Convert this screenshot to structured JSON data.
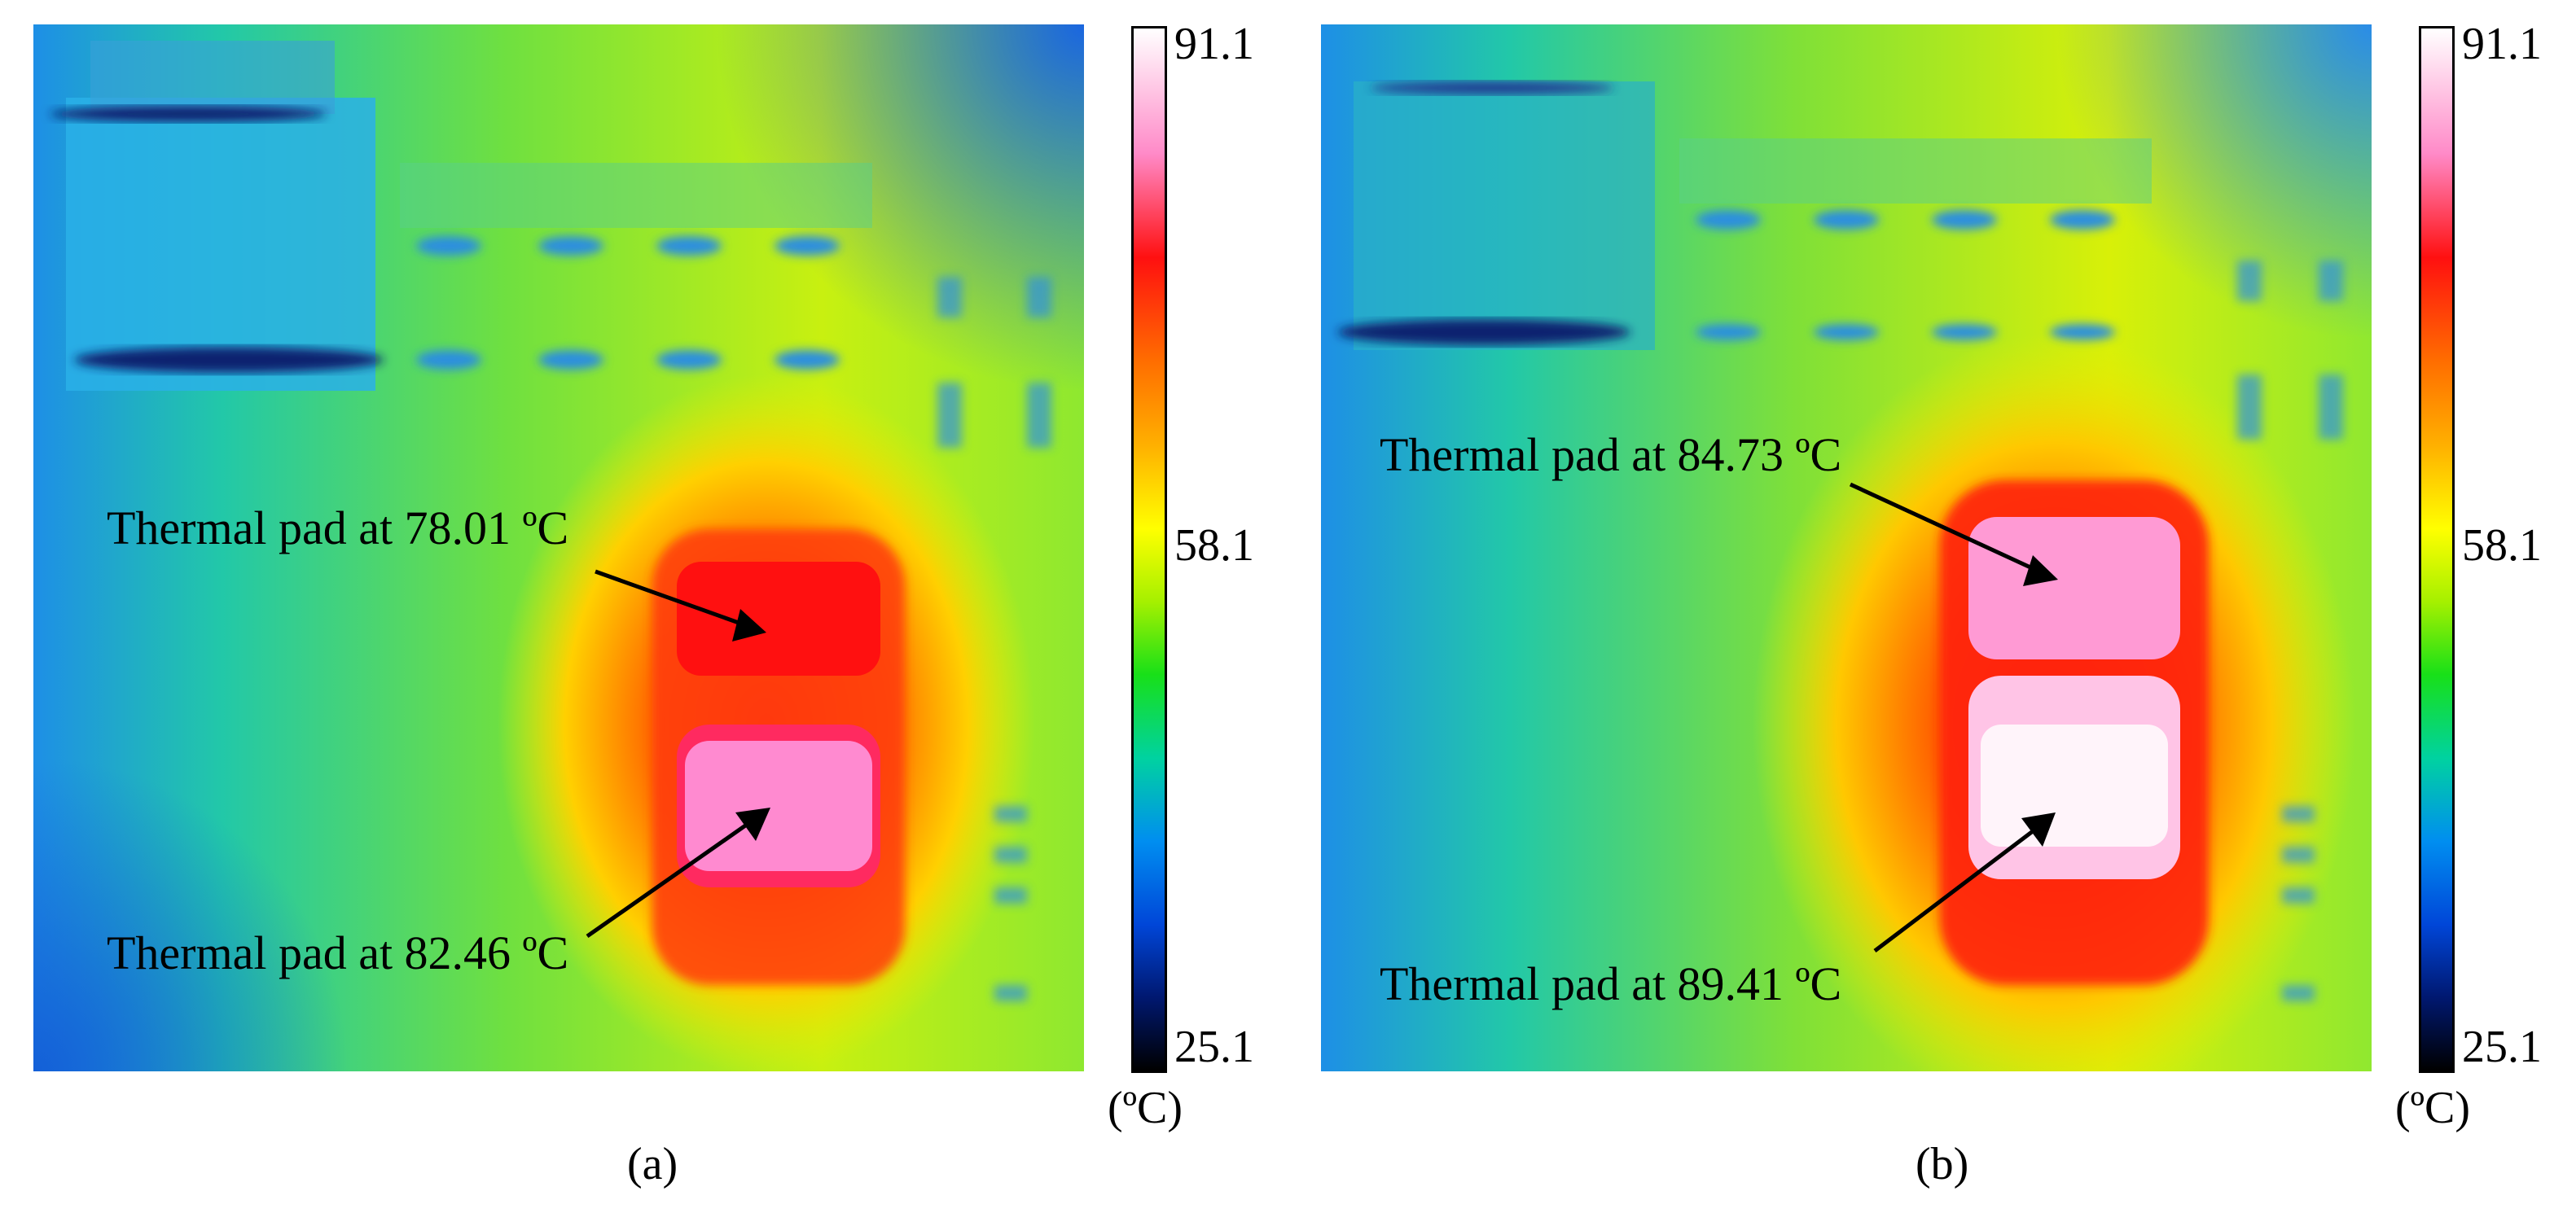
{
  "panels": [
    {
      "id": "a",
      "caption": "(a)",
      "annotation_top": "Thermal pad at 78.01 ºC",
      "annotation_bottom": "Thermal pad at 82.46 ºC",
      "colorbar": {
        "max": "91.1",
        "mid": "58.1",
        "min": "25.1",
        "unit": "(ºC)"
      }
    },
    {
      "id": "b",
      "caption": "(b)",
      "annotation_top": "Thermal pad at 84.73 ºC",
      "annotation_bottom": "Thermal pad at 89.41 ºC",
      "colorbar": {
        "max": "91.1",
        "mid": "58.1",
        "min": "25.1",
        "unit": "(ºC)"
      }
    }
  ],
  "palette": {
    "cold": "#0a2fb8",
    "cool": "#2aa0e8",
    "mild": "#2fd060",
    "warm": "#e8f000",
    "hot": "#ff7000",
    "very_hot": "#ff1a1a",
    "max": "#ffe6f4"
  }
}
